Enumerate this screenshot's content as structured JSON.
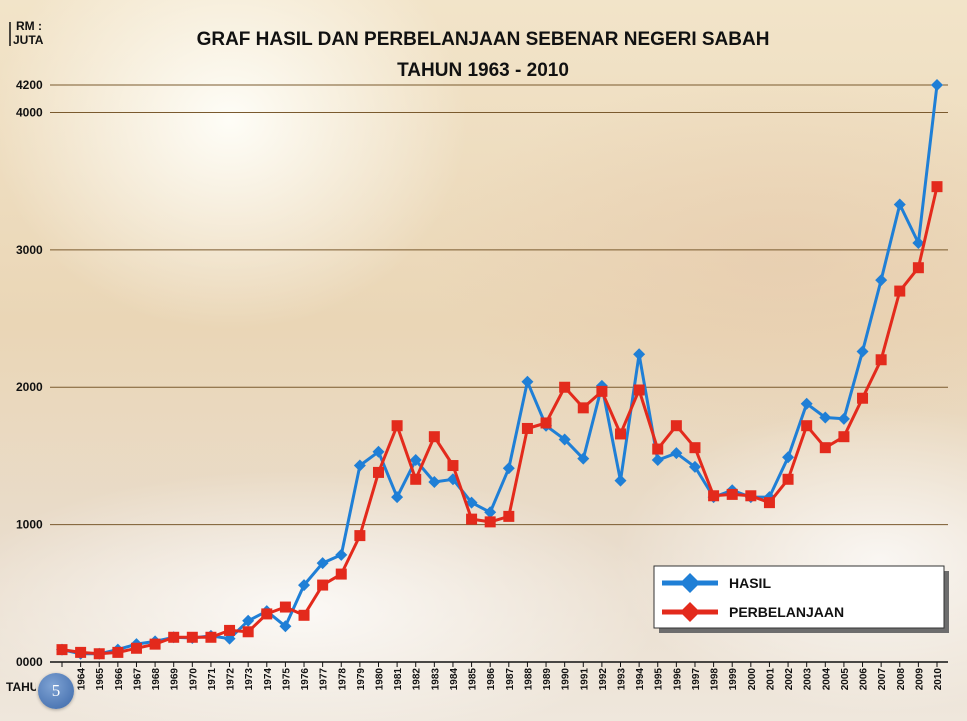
{
  "slide": {
    "number": "5"
  },
  "chart_data": {
    "type": "line",
    "title": "GRAF HASIL DAN PERBELANJAAN SEBENAR NEGERI SABAH",
    "subtitle": "TAHUN 1963 - 2010",
    "ylabel": "RM :\nJUTA",
    "ylabel_lines": [
      "RM :",
      "JUTA"
    ],
    "xlabel": "TAHUN",
    "ylim": [
      0,
      4200
    ],
    "yticks": [
      0,
      1000,
      2000,
      3000,
      4000,
      4200
    ],
    "ytick_labels": [
      "0000",
      "1000",
      "2000",
      "3000",
      "4000",
      "4200"
    ],
    "grid": true,
    "legend": "bottom-right",
    "x": [
      "1963",
      "1964",
      "1965",
      "1966",
      "1967",
      "1968",
      "1969",
      "1970",
      "1971",
      "1972",
      "1973",
      "1974",
      "1975",
      "1976",
      "1977",
      "1978",
      "1979",
      "1980",
      "1981",
      "1982",
      "1983",
      "1984",
      "1985",
      "1986",
      "1987",
      "1988",
      "1989",
      "1990",
      "1991",
      "1992",
      "1993",
      "1994",
      "1995",
      "1996",
      "1997",
      "1998",
      "1999",
      "2000",
      "2001",
      "2002",
      "2003",
      "2004",
      "2005",
      "2006",
      "2007",
      "2008",
      "2009",
      "2010"
    ],
    "xtick_labels": [
      "",
      "1964",
      "1965",
      "1966",
      "1967",
      "1968",
      "1969",
      "1970",
      "1971",
      "1972",
      "1973",
      "1974",
      "1975",
      "1976",
      "1977",
      "1978",
      "1979",
      "1980",
      "1981",
      "1982",
      "1983",
      "1984",
      "1985",
      "1986",
      "1987",
      "1988",
      "1989",
      "1990",
      "1991",
      "1992",
      "1993",
      "1994",
      "1995",
      "1996",
      "1997",
      "1998",
      "1999",
      "2000",
      "2001",
      "2002",
      "2003",
      "2004",
      "2005",
      "2006",
      "2007",
      "2008",
      "2009",
      "2010"
    ],
    "series": [
      {
        "name": "HASIL",
        "color": "#1f7fd6",
        "marker": "diamond",
        "values": [
          90,
          60,
          60,
          90,
          130,
          150,
          180,
          175,
          190,
          170,
          300,
          370,
          260,
          560,
          720,
          780,
          1430,
          1530,
          1200,
          1470,
          1310,
          1330,
          1160,
          1090,
          1410,
          2040,
          1720,
          1620,
          1480,
          2010,
          1320,
          2240,
          1470,
          1520,
          1420,
          1200,
          1250,
          1200,
          1200,
          1490,
          1880,
          1780,
          1770,
          2260,
          2780,
          3330,
          3050,
          4200
        ]
      },
      {
        "name": "PERBELANJAAN",
        "color": "#e32a1c",
        "marker": "square",
        "values": [
          90,
          70,
          60,
          70,
          100,
          130,
          180,
          180,
          180,
          230,
          220,
          350,
          400,
          340,
          560,
          640,
          920,
          1380,
          1720,
          1330,
          1640,
          1430,
          1040,
          1020,
          1060,
          1700,
          1740,
          2000,
          1850,
          1970,
          1660,
          1980,
          1550,
          1720,
          1560,
          1210,
          1220,
          1210,
          1160,
          1330,
          1720,
          1560,
          1640,
          1920,
          2200,
          2700,
          2870,
          3460
        ]
      }
    ]
  }
}
